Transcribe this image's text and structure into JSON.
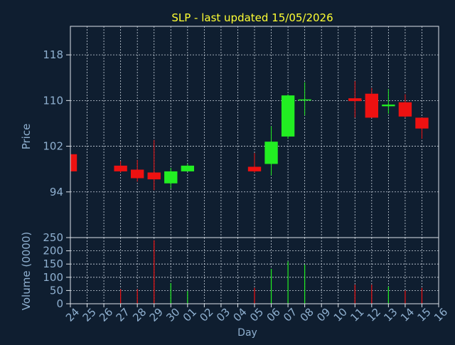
{
  "title": "SLP - last updated 15/05/2026",
  "colors": {
    "background": "#0f1e30",
    "frame": "#dde3ea",
    "grid": "#c9d2dc",
    "title": "#ffff33",
    "axis_text": "#8fb0d0",
    "up": "#22ee22",
    "down": "#ee1111"
  },
  "chart_data": [
    {
      "type": "candlestick",
      "ylabel": "Price",
      "ylim": [
        86,
        123
      ],
      "yticks": [
        94,
        102,
        110,
        118
      ],
      "grid": true,
      "categories": [
        "24",
        "25",
        "26",
        "27",
        "28",
        "29",
        "30",
        "01",
        "02",
        "03",
        "04",
        "05",
        "06",
        "07",
        "08",
        "09",
        "10",
        "11",
        "12",
        "13",
        "14",
        "15",
        "16"
      ],
      "candles": [
        {
          "x": "24",
          "open": 100.6,
          "high": 100.6,
          "low": 97.6,
          "close": 97.6
        },
        {
          "x": "27",
          "open": 98.6,
          "high": 99.4,
          "low": 97.4,
          "close": 97.6
        },
        {
          "x": "28",
          "open": 97.9,
          "high": 99.6,
          "low": 95.8,
          "close": 96.4
        },
        {
          "x": "29",
          "open": 97.4,
          "high": 103.1,
          "low": 94.3,
          "close": 96.2
        },
        {
          "x": "30",
          "open": 95.5,
          "high": 98.2,
          "low": 94.6,
          "close": 97.6
        },
        {
          "x": "01",
          "open": 97.6,
          "high": 98.9,
          "low": 97.6,
          "close": 98.6
        },
        {
          "x": "05",
          "open": 98.4,
          "high": 100.8,
          "low": 97.4,
          "close": 97.6
        },
        {
          "x": "06",
          "open": 98.9,
          "high": 105.5,
          "low": 96.9,
          "close": 102.8
        },
        {
          "x": "07",
          "open": 103.7,
          "high": 111.1,
          "low": 103.3,
          "close": 110.9
        },
        {
          "x": "08",
          "open": 110.2,
          "high": 113.2,
          "low": 107.4,
          "close": 110.2
        },
        {
          "x": "11",
          "open": 110.4,
          "high": 113.4,
          "low": 107.0,
          "close": 109.9
        },
        {
          "x": "12",
          "open": 111.2,
          "high": 112.2,
          "low": 107.0,
          "close": 107.0
        },
        {
          "x": "13",
          "open": 109.0,
          "high": 112.0,
          "low": 107.7,
          "close": 109.3
        },
        {
          "x": "14",
          "open": 109.7,
          "high": 111.1,
          "low": 107.0,
          "close": 107.2
        },
        {
          "x": "15",
          "open": 107.0,
          "high": 107.0,
          "low": 103.3,
          "close": 105.1
        }
      ]
    },
    {
      "type": "bar",
      "ylabel": "Volume (0000)",
      "xlabel": "Day",
      "ylim": [
        0,
        250
      ],
      "yticks": [
        0,
        50,
        100,
        150,
        200,
        250
      ],
      "grid": true,
      "categories": [
        "24",
        "25",
        "26",
        "27",
        "28",
        "29",
        "30",
        "01",
        "02",
        "03",
        "04",
        "05",
        "06",
        "07",
        "08",
        "09",
        "10",
        "11",
        "12",
        "13",
        "14",
        "15",
        "16"
      ],
      "bars": [
        {
          "x": "24",
          "value": 0,
          "dir": "down"
        },
        {
          "x": "27",
          "value": 55,
          "dir": "down"
        },
        {
          "x": "28",
          "value": 55,
          "dir": "down"
        },
        {
          "x": "29",
          "value": 240,
          "dir": "down"
        },
        {
          "x": "30",
          "value": 78,
          "dir": "up"
        },
        {
          "x": "01",
          "value": 48,
          "dir": "up"
        },
        {
          "x": "05",
          "value": 60,
          "dir": "down"
        },
        {
          "x": "06",
          "value": 132,
          "dir": "up"
        },
        {
          "x": "07",
          "value": 160,
          "dir": "up"
        },
        {
          "x": "08",
          "value": 148,
          "dir": "up"
        },
        {
          "x": "11",
          "value": 72,
          "dir": "down"
        },
        {
          "x": "12",
          "value": 72,
          "dir": "down"
        },
        {
          "x": "13",
          "value": 65,
          "dir": "up"
        },
        {
          "x": "14",
          "value": 50,
          "dir": "down"
        },
        {
          "x": "15",
          "value": 60,
          "dir": "down"
        }
      ]
    }
  ]
}
